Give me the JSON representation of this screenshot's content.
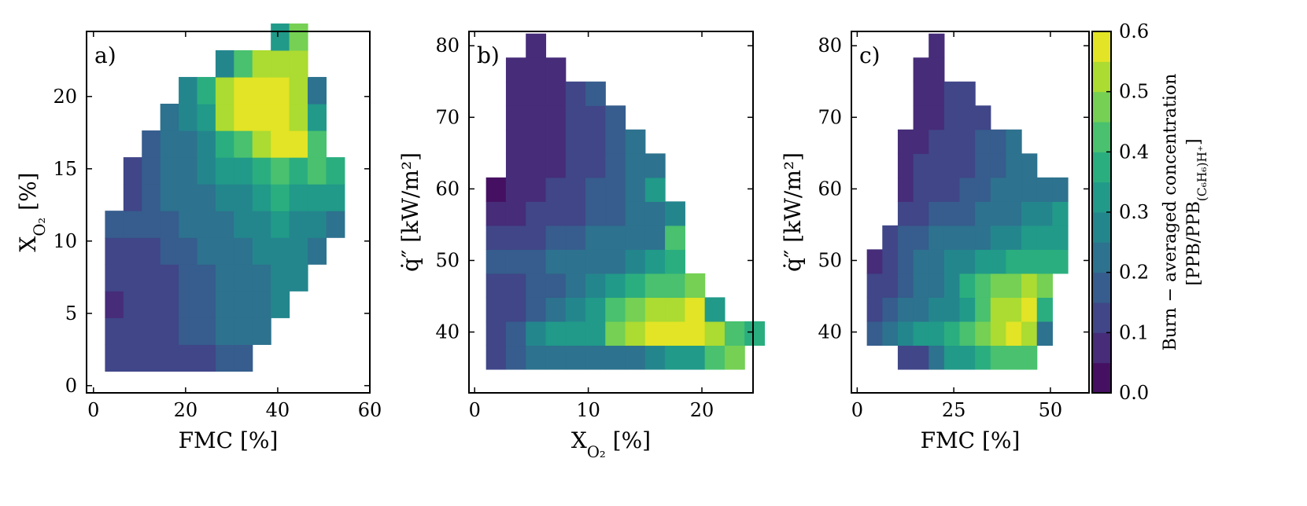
{
  "chart_data": [
    {
      "type": "heatmap",
      "panel_label": "a)",
      "xlabel": "FMC [%]",
      "ylabel_html": "X<tspan baseline-shift='sub' font-size='70%'>O₂</tspan> [%]",
      "ylabel_text": "XO2 [%]",
      "xlim": [
        -1.5,
        60
      ],
      "ylim": [
        -0.5,
        24.5
      ],
      "xticks": [
        0,
        20,
        40,
        60
      ],
      "yticks": [
        0,
        5,
        10,
        15,
        20
      ],
      "cell_w": 4.0,
      "cell_h": 1.85,
      "x0": 2.5,
      "y0": 1.0,
      "rows": [
        [
          0.12,
          0.1,
          0.1,
          0.1,
          0.12,
          0.14,
          0.16,
          0.18,
          null,
          null,
          null,
          null,
          null
        ],
        [
          0.12,
          0.1,
          0.11,
          0.13,
          0.15,
          0.18,
          0.2,
          0.22,
          0.22,
          null,
          null,
          null,
          null
        ],
        [
          0.08,
          0.1,
          0.11,
          0.13,
          0.15,
          0.18,
          0.2,
          0.22,
          0.24,
          0.26,
          null,
          null,
          null
        ],
        [
          0.11,
          0.12,
          0.13,
          0.14,
          0.16,
          0.18,
          0.2,
          0.22,
          0.24,
          0.26,
          0.26,
          null,
          null
        ],
        [
          0.11,
          0.12,
          0.14,
          0.16,
          0.18,
          0.2,
          0.22,
          0.24,
          0.26,
          0.28,
          0.28,
          0.24,
          null
        ],
        [
          0.17,
          0.16,
          0.17,
          0.18,
          0.2,
          0.22,
          0.24,
          0.26,
          0.28,
          0.3,
          0.28,
          0.26,
          0.23
        ],
        [
          null,
          0.14,
          0.18,
          0.2,
          0.22,
          0.24,
          0.26,
          0.28,
          0.3,
          0.36,
          0.32,
          0.32,
          0.32
        ],
        [
          null,
          0.14,
          0.18,
          0.2,
          0.24,
          0.26,
          0.3,
          0.32,
          0.36,
          0.4,
          0.38,
          0.44,
          0.38
        ],
        [
          null,
          null,
          0.16,
          0.2,
          0.24,
          0.28,
          0.36,
          0.44,
          0.52,
          0.58,
          0.58,
          0.4,
          null
        ],
        [
          null,
          null,
          null,
          0.2,
          0.26,
          0.32,
          0.5,
          0.58,
          0.6,
          0.6,
          0.52,
          0.33,
          null
        ],
        [
          null,
          null,
          null,
          null,
          0.26,
          0.36,
          0.5,
          0.6,
          0.6,
          0.56,
          0.52,
          0.22,
          null
        ],
        [
          null,
          null,
          null,
          null,
          null,
          null,
          0.25,
          0.44,
          0.5,
          0.54,
          0.5,
          null,
          null
        ],
        [
          null,
          null,
          null,
          null,
          null,
          null,
          null,
          null,
          null,
          0.3,
          0.46,
          null,
          null
        ]
      ]
    },
    {
      "type": "heatmap",
      "panel_label": "b)",
      "xlabel_html": "X<tspan baseline-shift='sub' font-size='70%'>O₂</tspan> [%]",
      "xlabel_text": "XO2 [%]",
      "ylabel_html": "q̇″ [kW/m²]",
      "ylabel_text": "q̇″ [kW/m²]",
      "xlim": [
        -0.5,
        24.5
      ],
      "ylim": [
        31.5,
        82
      ],
      "xticks": [
        0,
        10,
        20
      ],
      "yticks": [
        40,
        50,
        60,
        70,
        80
      ],
      "cell_w": 1.75,
      "cell_h": 3.35,
      "x0": 1.0,
      "y0": 34.8,
      "rows": [
        [
          0.14,
          0.16,
          0.2,
          0.22,
          0.22,
          0.22,
          0.22,
          0.24,
          0.26,
          0.3,
          0.32,
          0.4,
          0.46,
          null
        ],
        [
          0.14,
          0.18,
          0.26,
          0.3,
          0.32,
          0.34,
          0.48,
          0.52,
          0.56,
          0.56,
          0.56,
          0.52,
          0.42,
          0.38
        ],
        [
          0.12,
          0.14,
          0.18,
          0.24,
          0.26,
          0.3,
          0.4,
          0.46,
          0.5,
          0.54,
          0.6,
          0.3,
          null,
          null
        ],
        [
          0.12,
          0.13,
          0.16,
          0.18,
          0.22,
          0.26,
          0.32,
          0.36,
          0.4,
          0.44,
          0.46,
          null,
          null,
          null
        ],
        [
          0.16,
          0.18,
          0.18,
          0.2,
          0.22,
          0.22,
          0.24,
          0.26,
          0.3,
          0.36,
          null,
          null,
          null,
          null
        ],
        [
          0.12,
          0.12,
          0.14,
          0.16,
          0.18,
          0.2,
          0.2,
          0.22,
          0.24,
          0.4,
          null,
          null,
          null,
          null
        ],
        [
          0.09,
          0.09,
          0.1,
          0.12,
          0.14,
          0.16,
          0.18,
          0.2,
          0.22,
          0.26,
          null,
          null,
          null,
          null
        ],
        [
          0.02,
          0.07,
          0.08,
          0.1,
          0.12,
          0.16,
          0.18,
          0.2,
          0.34,
          null,
          null,
          null,
          null,
          null
        ],
        [
          null,
          0.06,
          0.05,
          0.08,
          0.1,
          0.14,
          0.17,
          0.2,
          0.2,
          null,
          null,
          null,
          null,
          null
        ],
        [
          null,
          0.07,
          0.06,
          0.08,
          0.1,
          0.12,
          0.18,
          0.2,
          null,
          null,
          null,
          null,
          null,
          null
        ],
        [
          null,
          0.06,
          0.06,
          0.07,
          0.1,
          0.13,
          0.18,
          null,
          null,
          null,
          null,
          null,
          null,
          null
        ],
        [
          null,
          0.06,
          0.06,
          0.08,
          0.12,
          0.18,
          null,
          null,
          null,
          null,
          null,
          null,
          null,
          null
        ],
        [
          null,
          0.05,
          0.05,
          0.07,
          null,
          null,
          null,
          null,
          null,
          null,
          null,
          null,
          null,
          null
        ],
        [
          null,
          null,
          0.06,
          null,
          null,
          null,
          null,
          null,
          null,
          null,
          null,
          null,
          null,
          null
        ]
      ]
    },
    {
      "type": "heatmap",
      "panel_label": "c)",
      "xlabel": "FMC [%]",
      "ylabel_html": "q̇″ [kW/m²]",
      "ylabel_text": "q̇″ [kW/m²]",
      "xlim": [
        -1.5,
        60
      ],
      "ylim": [
        31.5,
        82
      ],
      "xticks": [
        0,
        25,
        50
      ],
      "yticks": [
        40,
        50,
        60,
        70,
        80
      ],
      "cell_w": 4.0,
      "cell_h": 3.35,
      "x0": 2.5,
      "y0": 34.8,
      "rows": [
        [
          null,
          null,
          0.1,
          0.12,
          0.2,
          0.3,
          0.34,
          0.36,
          0.4,
          0.44,
          0.4,
          null,
          null,
          null
        ],
        [
          0.18,
          0.2,
          0.28,
          0.3,
          0.32,
          0.36,
          0.4,
          0.46,
          0.52,
          0.6,
          0.5,
          0.24,
          null,
          null
        ],
        [
          0.12,
          0.16,
          0.2,
          0.22,
          0.26,
          0.28,
          0.34,
          0.44,
          0.5,
          0.54,
          0.56,
          0.36,
          null,
          null
        ],
        [
          0.1,
          0.14,
          0.18,
          0.2,
          0.22,
          0.28,
          0.36,
          0.42,
          0.46,
          0.48,
          0.5,
          0.46,
          null,
          null
        ],
        [
          0.08,
          0.12,
          0.18,
          0.22,
          0.24,
          0.26,
          0.28,
          0.32,
          0.34,
          0.36,
          0.36,
          0.38,
          0.38,
          null
        ],
        [
          null,
          0.1,
          0.16,
          0.18,
          0.2,
          0.2,
          0.22,
          0.24,
          0.26,
          0.28,
          0.3,
          0.32,
          0.32,
          null
        ],
        [
          null,
          null,
          0.12,
          0.14,
          0.16,
          0.18,
          0.18,
          0.2,
          0.22,
          0.24,
          0.28,
          0.28,
          0.3,
          null
        ],
        [
          null,
          null,
          0.08,
          0.1,
          0.12,
          0.14,
          0.16,
          0.18,
          0.2,
          0.22,
          0.24,
          0.24,
          0.24,
          null
        ],
        [
          null,
          null,
          0.07,
          0.1,
          0.11,
          0.12,
          0.14,
          0.16,
          0.18,
          0.2,
          0.22,
          null,
          null,
          null
        ],
        [
          null,
          null,
          0.06,
          0.08,
          0.1,
          0.12,
          0.14,
          0.16,
          0.18,
          0.2,
          null,
          null,
          null,
          null
        ],
        [
          null,
          null,
          null,
          0.05,
          0.08,
          0.1,
          0.12,
          0.14,
          null,
          null,
          null,
          null,
          null,
          null
        ],
        [
          null,
          null,
          null,
          0.06,
          0.09,
          0.1,
          0.12,
          null,
          null,
          null,
          null,
          null,
          null,
          null
        ],
        [
          null,
          null,
          null,
          0.07,
          0.08,
          null,
          null,
          null,
          null,
          null,
          null,
          null,
          null,
          null
        ],
        [
          null,
          null,
          null,
          null,
          0.08,
          null,
          null,
          null,
          null,
          null,
          null,
          null,
          null,
          null
        ]
      ]
    }
  ],
  "colorbar": {
    "label_line1": "Burn − averaged concentration",
    "label_line2_html": "[PPB/PPB<tspan baseline-shift='sub' font-size='70%'>(C₆H₆)H⁺</tspan>]",
    "label_line2_text": "[PPB/PPB(C6H6)H+]",
    "min": 0.0,
    "max": 0.6,
    "ticks": [
      0.0,
      0.1,
      0.2,
      0.3,
      0.4,
      0.5,
      0.6
    ],
    "levels": 12,
    "colormap": "viridis"
  }
}
